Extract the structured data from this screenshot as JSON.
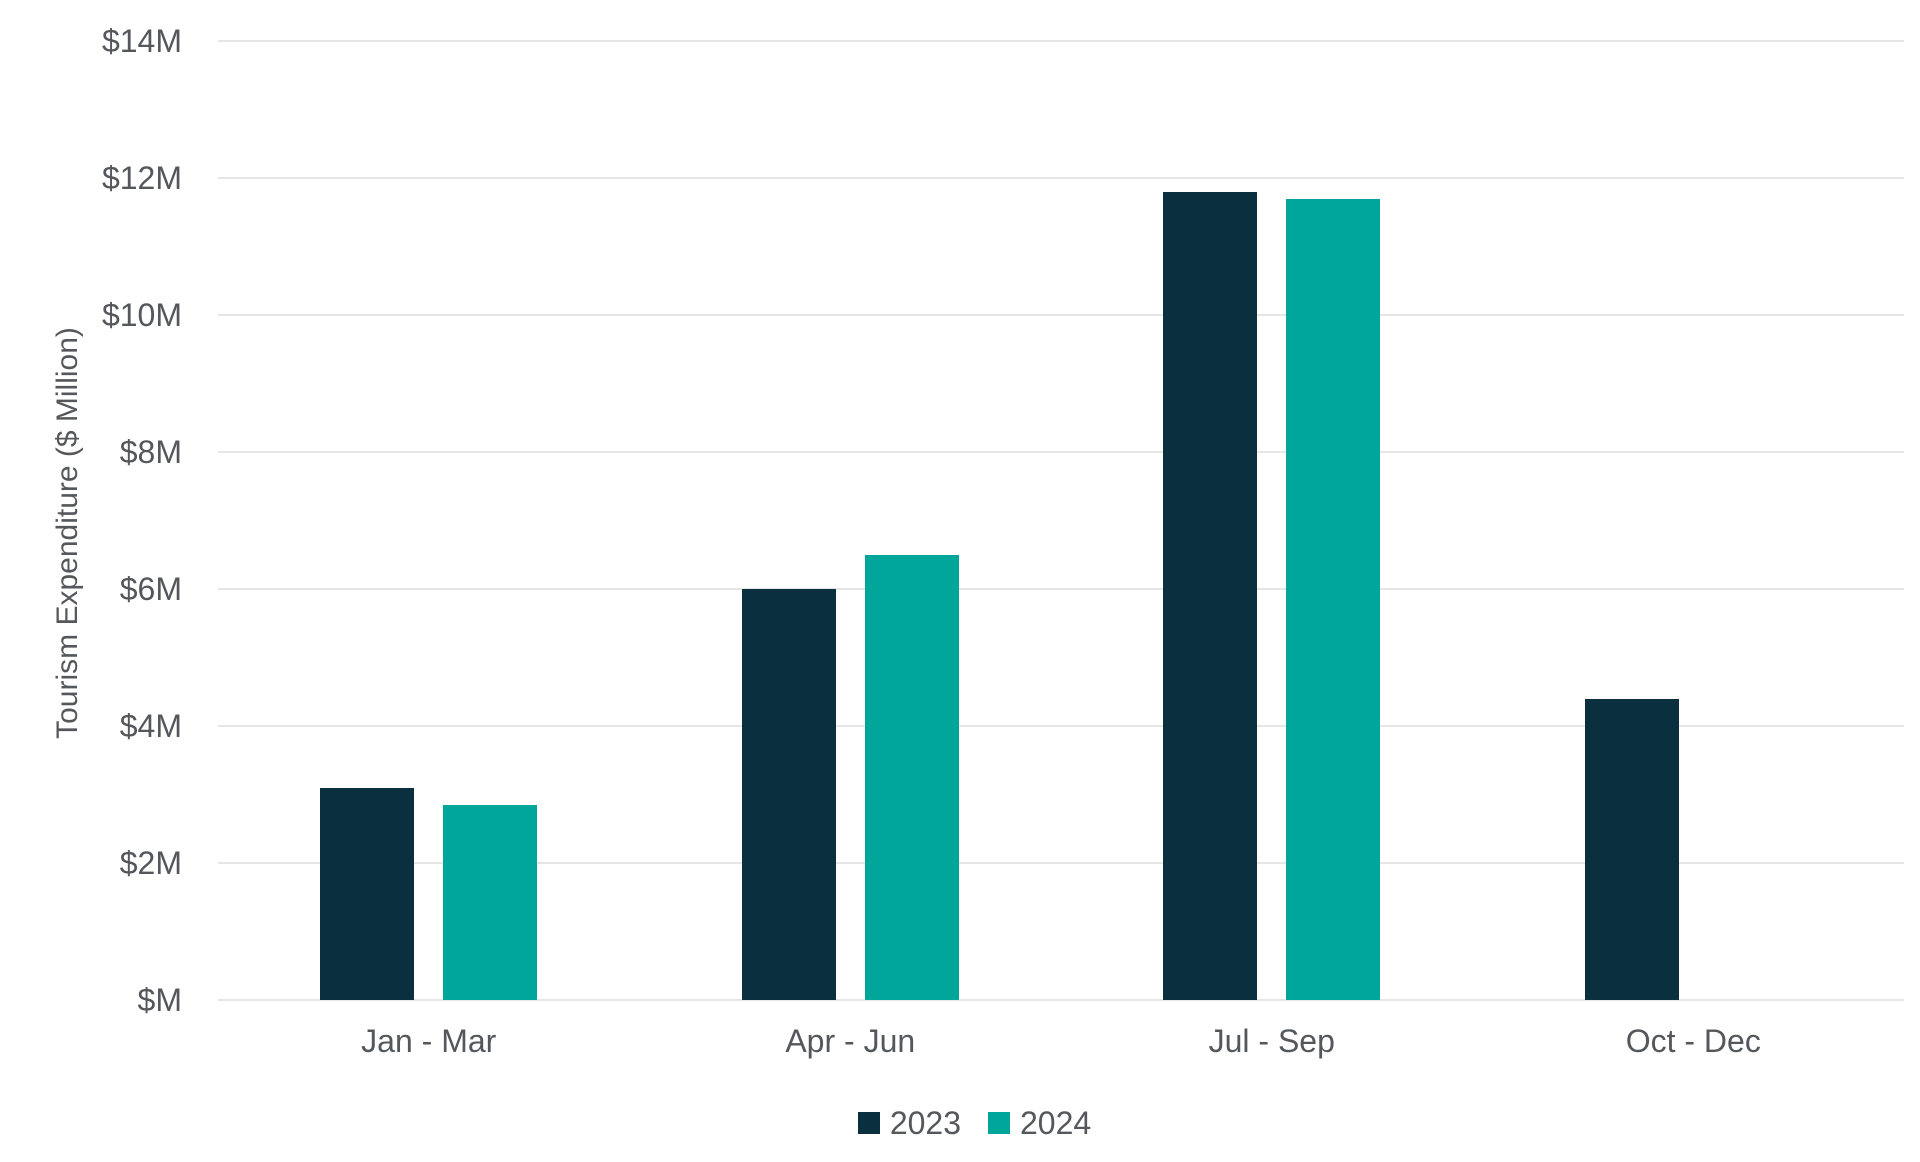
{
  "colors": {
    "background": "#ffffff",
    "gridline": "#e6e6e6",
    "axis_text": "#54575b",
    "series_2023": "#0a303f",
    "series_2024": "#00a69a"
  },
  "chart_data": {
    "type": "bar",
    "title": "",
    "xlabel": "",
    "ylabel": "Tourism Expenditure ($ Million)",
    "categories": [
      "Jan - Mar",
      "Apr - Jun",
      "Jul - Sep",
      "Oct - Dec"
    ],
    "series": [
      {
        "name": "2023",
        "color": "#0a303f",
        "values": [
          3.1,
          6.0,
          11.8,
          4.4
        ]
      },
      {
        "name": "2024",
        "color": "#00a69a",
        "values": [
          2.85,
          6.5,
          11.7,
          null
        ]
      }
    ],
    "ylim": [
      0,
      14
    ],
    "yticks": [
      0,
      2,
      4,
      6,
      8,
      10,
      12,
      14
    ],
    "ytick_labels": [
      "$M",
      "$2M",
      "$4M",
      "$6M",
      "$8M",
      "$10M",
      "$12M",
      "$14M"
    ],
    "grid": true,
    "legend_position": "bottom"
  }
}
